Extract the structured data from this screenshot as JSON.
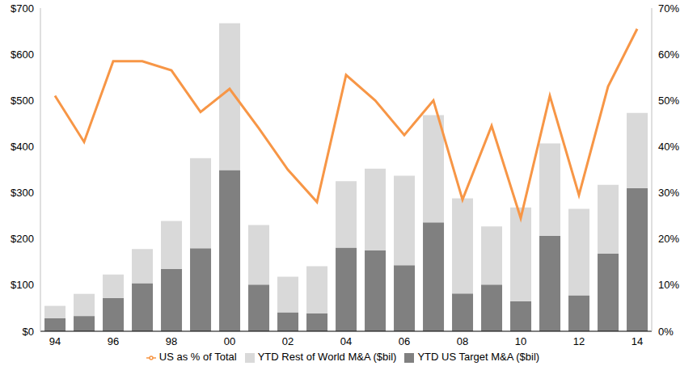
{
  "chart_data": {
    "type": "bar",
    "stacked": true,
    "legend": "bottom",
    "grid": false,
    "categories": [
      "94",
      null,
      "96",
      null,
      "98",
      null,
      "00",
      null,
      "02",
      null,
      "04",
      null,
      "06",
      null,
      "08",
      null,
      "10",
      null,
      "12",
      null,
      "14"
    ],
    "series": [
      {
        "name": "YTD US Target M&A ($bil)",
        "color": "#808080",
        "type": "bar",
        "values": [
          28,
          33,
          72,
          104,
          135,
          180,
          349,
          101,
          41,
          39,
          181,
          175,
          143,
          236,
          82,
          101,
          65,
          207,
          78,
          168,
          310
        ]
      },
      {
        "name": "YTD Rest of World M&A ($bil)",
        "color": "#d9d9d9",
        "type": "bar",
        "values": [
          27,
          48,
          51,
          74,
          104,
          195,
          318,
          129,
          77,
          102,
          144,
          177,
          194,
          232,
          206,
          126,
          203,
          200,
          187,
          149,
          163
        ]
      },
      {
        "name": "US as % of Total",
        "color": "#f79646",
        "type": "line",
        "axis": "y2",
        "values": [
          51,
          41,
          58.5,
          58.5,
          56.5,
          47.5,
          52.5,
          44,
          35,
          28,
          55.5,
          50,
          42.5,
          50,
          28.5,
          44.5,
          24.5,
          51,
          29.5,
          53,
          65.5
        ]
      }
    ],
    "ylim": [
      0,
      700
    ],
    "yticks": [
      {
        "value": 0,
        "label": "$0"
      },
      {
        "value": 100,
        "label": "$100"
      },
      {
        "value": 200,
        "label": "$200"
      },
      {
        "value": 300,
        "label": "$300"
      },
      {
        "value": 400,
        "label": "$400"
      },
      {
        "value": 500,
        "label": "$500"
      },
      {
        "value": 600,
        "label": "$600"
      },
      {
        "value": 700,
        "label": "$700"
      }
    ],
    "y2lim": [
      0,
      70
    ],
    "y2ticks": [
      {
        "value": 0,
        "label": "0%"
      },
      {
        "value": 10,
        "label": "10%"
      },
      {
        "value": 20,
        "label": "20%"
      },
      {
        "value": 30,
        "label": "30%"
      },
      {
        "value": 40,
        "label": "40%"
      },
      {
        "value": 50,
        "label": "50%"
      },
      {
        "value": 60,
        "label": "60%"
      },
      {
        "value": 70,
        "label": "70%"
      }
    ]
  }
}
